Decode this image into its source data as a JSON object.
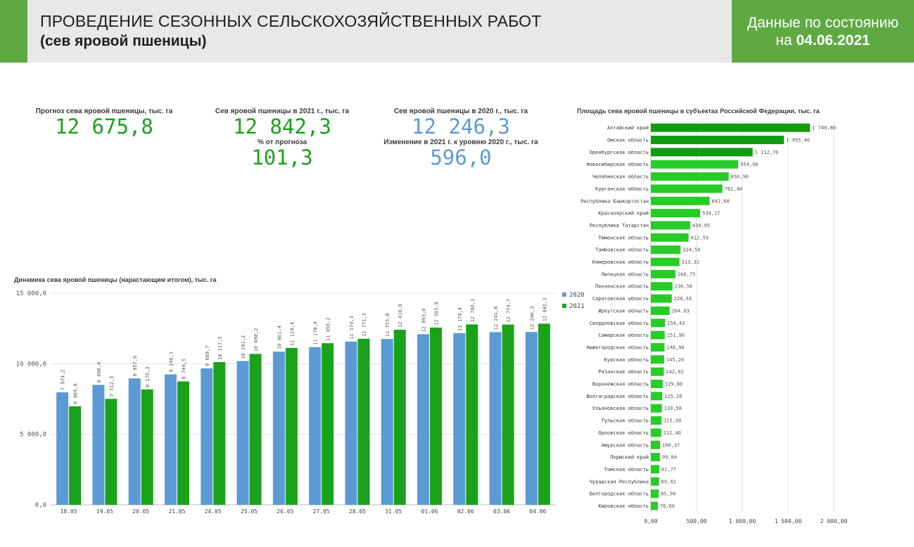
{
  "header": {
    "title_line1": "ПРОВЕДЕНИЕ СЕЗОННЫХ СЕЛЬСКОХОЗЯЙСТВЕННЫХ РАБОТ",
    "title_line2": "(сев яровой пшеницы)",
    "date_line1": "Данные по состоянию",
    "date_prefix": "на ",
    "date_value": "04.06.2021"
  },
  "kpis": {
    "forecast_label": "Прогноз сева яровой пшеницы, тыс. га",
    "forecast_value": "12 675,8",
    "sown_2021_label": "Сев яровой пшеницы в 2021 г., тыс. га",
    "sown_2021_value": "12 842,3",
    "pct_label": "% от прогноза",
    "pct_value": "101,3",
    "sown_2020_label": "Сев яровой пшеницы в 2020 г., тыс. га",
    "sown_2020_value": "12 246,3",
    "change_label": "Изменение в 2021 г. к уровню 2020 г., тыс. га",
    "change_value": "596,0"
  },
  "colors": {
    "accent": "#5fa942",
    "series_2020": "#5b9bd5",
    "series_2021": "#1aa21a",
    "region_dark": "#129c12",
    "region_light": "#27cc27"
  },
  "chart_data": [
    {
      "type": "bar",
      "title": "Динамика сева яровой пшеницы (нарастающим итогом), тыс. га",
      "categories": [
        "18.05",
        "19.05",
        "20.05",
        "21.05",
        "24.05",
        "25.05",
        "26.05",
        "27.05",
        "28.05",
        "31.05",
        "01.06",
        "02.06",
        "03.06",
        "04.06"
      ],
      "series": [
        {
          "name": "2020",
          "values": [
            7974.2,
            8498.4,
            8957.6,
            9246.1,
            9669.7,
            10191.2,
            10861.4,
            11178.0,
            11574.3,
            11755.8,
            12093.0,
            12174.4,
            12241.8,
            12246.3
          ],
          "labels": [
            "7 974,2",
            "8 498,4",
            "8 957,6",
            "9 246,1",
            "9 669,7",
            "10 191,2",
            "10 861,4",
            "11 178,0",
            "11 574,3",
            "11 755,8",
            "12 093,0",
            "12 174,4",
            "12 241,8",
            "12 246,3"
          ]
        },
        {
          "name": "2021",
          "values": [
            6984.6,
            7512.3,
            8176.3,
            8744.5,
            10117.5,
            10698.2,
            11119.4,
            11456.2,
            11771.5,
            12410.0,
            12563.9,
            12786.1,
            12774.7,
            12842.3
          ],
          "labels": [
            "6 984,6",
            "7 512,3",
            "8 176,3",
            "8 744,5",
            "10 117,5",
            "10 698,2",
            "11 119,4",
            "11 456,2",
            "11 771,5",
            "12 410,0",
            "12 563,9",
            "12 786,1",
            "12 774,7",
            "12 842,3"
          ]
        }
      ],
      "ylim": [
        0,
        15000
      ],
      "yticks": [
        0,
        5000,
        10000,
        15000
      ],
      "ytick_labels": [
        "0,0",
        "5 000,0",
        "10 000,0",
        "15 000,0"
      ],
      "legend": "right",
      "grid": true
    },
    {
      "type": "bar",
      "orientation": "horizontal",
      "title": "Площадь сева яровой пшеницы в субъектах Российской Федерации, тыс. га",
      "categories": [
        "Алтайский край",
        "Омская область",
        "Оренбургская область",
        "Новосибирская область",
        "Челябинская область",
        "Курганская область",
        "Республика Башкортостан",
        "Красноярский край",
        "Республика Татарстан",
        "Тюменская область",
        "Тамбовская область",
        "Кемеровская область",
        "Липецкая область",
        "Пензенская область",
        "Саратовская область",
        "Иркутская область",
        "Свердловская область",
        "Самарская область",
        "Нижегородская область",
        "Курская область",
        "Рязанская область",
        "Воронежская область",
        "Волгоградская область",
        "Ульяновская область",
        "Тульская область",
        "Орловская область",
        "Амурская область",
        "Пермский край",
        "Томская область",
        "Чувашская Республика",
        "Белгородская область",
        "Кировская область"
      ],
      "values": [
        1740.8,
        1455.4,
        1112.76,
        954.9,
        850.9,
        782.4,
        642.6,
        539.17,
        430.05,
        412.59,
        324.5,
        313.31,
        268.75,
        236.5,
        228.93,
        204.63,
        154.43,
        151.9,
        148.9,
        145.2,
        142.02,
        129.8,
        125.2,
        120.58,
        115.9,
        112.4,
        100.37,
        99.84,
        91.77,
        89.42,
        85.9,
        76.6
      ],
      "labels": [
        "1 740,80",
        "1 455,40",
        "1 112,76",
        "954,90",
        "850,90",
        "782,40",
        "642,60",
        "539,17",
        "430,05",
        "412,59",
        "324,50",
        "313,31",
        "268,75",
        "236,50",
        "228,93",
        "204,63",
        "154,43",
        "151,90",
        "148,90",
        "145,20",
        "142,02",
        "129,80",
        "125,20",
        "120,58",
        "115,90",
        "112,40",
        "100,37",
        "99,84",
        "91,77",
        "89,42",
        "85,90",
        "76,60"
      ],
      "xlim": [
        0,
        2000
      ],
      "xticks": [
        0,
        500,
        1000,
        1500,
        2000
      ],
      "xtick_labels": [
        "0,00",
        "500,00",
        "1 000,00",
        "1 500,00",
        "2 000,00"
      ],
      "grid": true
    }
  ]
}
